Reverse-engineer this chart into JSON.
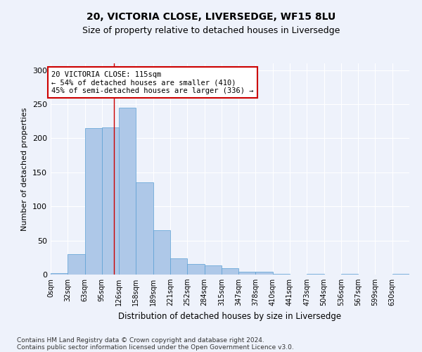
{
  "title1": "20, VICTORIA CLOSE, LIVERSEDGE, WF15 8LU",
  "title2": "Size of property relative to detached houses in Liversedge",
  "xlabel": "Distribution of detached houses by size in Liversedge",
  "ylabel": "Number of detached properties",
  "footer1": "Contains HM Land Registry data © Crown copyright and database right 2024.",
  "footer2": "Contains public sector information licensed under the Open Government Licence v3.0.",
  "bin_labels": [
    "0sqm",
    "32sqm",
    "63sqm",
    "95sqm",
    "126sqm",
    "158sqm",
    "189sqm",
    "221sqm",
    "252sqm",
    "284sqm",
    "315sqm",
    "347sqm",
    "378sqm",
    "410sqm",
    "441sqm",
    "473sqm",
    "504sqm",
    "536sqm",
    "567sqm",
    "599sqm",
    "630sqm"
  ],
  "bar_values": [
    2,
    30,
    215,
    216,
    245,
    135,
    65,
    24,
    16,
    13,
    9,
    4,
    4,
    1,
    0,
    1,
    0,
    1,
    0,
    0,
    1
  ],
  "bar_color": "#aec8e8",
  "bar_edge_color": "#5a9fd4",
  "property_line_x": 115,
  "bin_width": 31,
  "annotation_line1": "20 VICTORIA CLOSE: 115sqm",
  "annotation_line2": "← 54% of detached houses are smaller (410)",
  "annotation_line3": "45% of semi-detached houses are larger (336) →",
  "annotation_box_color": "#ffffff",
  "annotation_border_color": "#cc0000",
  "red_line_color": "#cc0000",
  "ylim": [
    0,
    310
  ],
  "yticks": [
    0,
    50,
    100,
    150,
    200,
    250,
    300
  ],
  "background_color": "#eef2fb",
  "grid_color": "#ffffff",
  "title_fontsize": 10,
  "subtitle_fontsize": 9
}
